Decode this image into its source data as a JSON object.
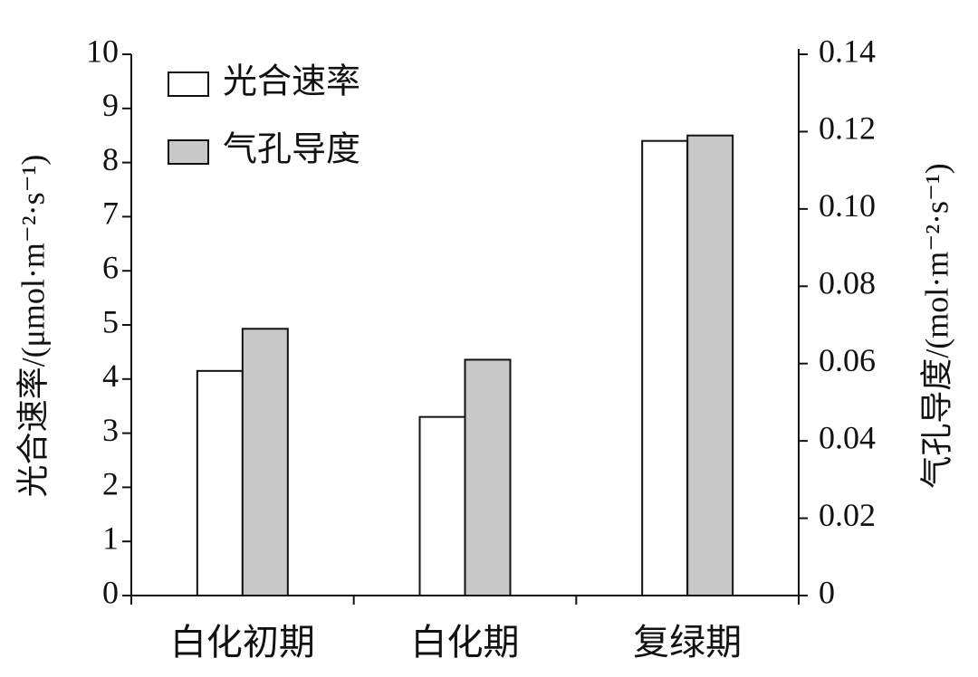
{
  "chart_data": {
    "type": "bar",
    "y_label": "光合速率/(μmol·m⁻²·s⁻¹)",
    "y2_label": "气孔导度/(mol·m⁻²·s⁻¹)",
    "categories": [
      "白化初期",
      "白化期",
      "复绿期"
    ],
    "series": [
      {
        "name": "光合速率",
        "color": "#ffffff",
        "values": [
          4.15,
          3.3,
          8.4
        ]
      },
      {
        "name": "气孔导度",
        "color": "#c8c8c8",
        "axis": "y2",
        "values": [
          0.069,
          0.061,
          0.119
        ]
      }
    ],
    "ylim": [
      0,
      10
    ],
    "yticks": [
      0,
      1,
      2,
      3,
      4,
      5,
      6,
      7,
      8,
      9,
      10
    ],
    "y2lim": [
      0,
      0.14
    ],
    "y2ticks": [
      0,
      0.02,
      0.04,
      0.06,
      0.08,
      {
        "value": 0.1,
        "label": "0.10"
      },
      0.12,
      0.14
    ],
    "legend": "top-left"
  }
}
